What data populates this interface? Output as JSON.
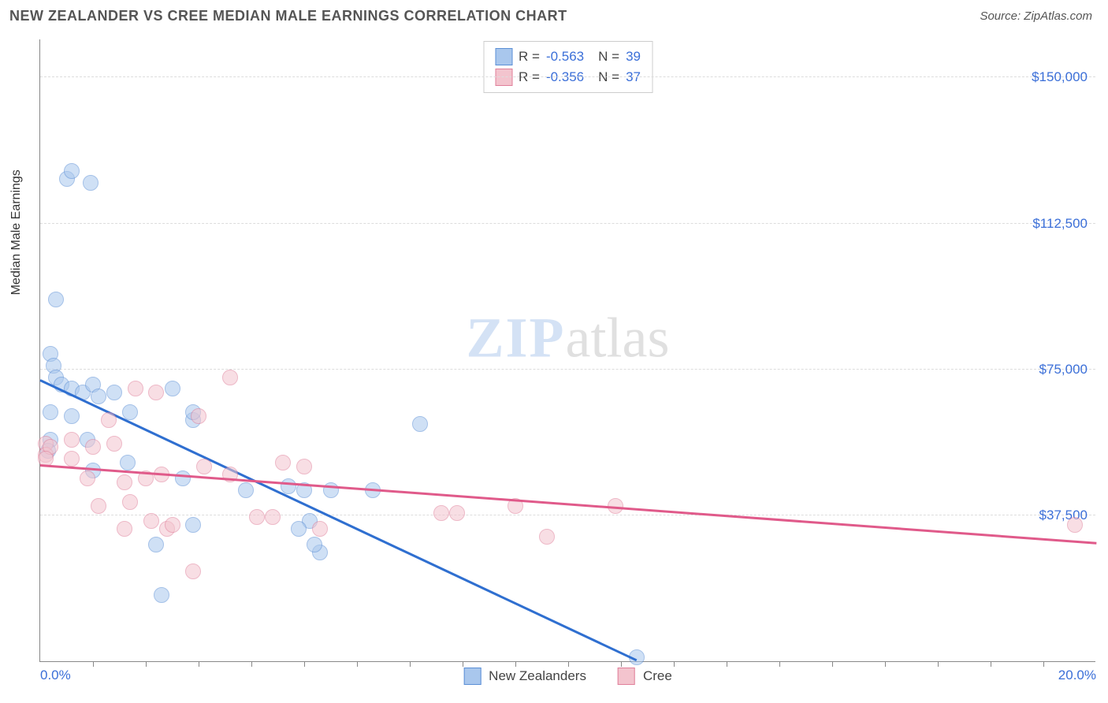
{
  "header": {
    "title": "NEW ZEALANDER VS CREE MEDIAN MALE EARNINGS CORRELATION CHART",
    "source": "Source: ZipAtlas.com"
  },
  "chart": {
    "type": "scatter",
    "ylabel": "Median Male Earnings",
    "xlim": [
      0,
      20
    ],
    "ylim": [
      0,
      160000
    ],
    "x_ticks_minor_step": 1,
    "x_tick_labels": [
      {
        "x": 0,
        "label": "0.0%"
      },
      {
        "x": 20,
        "label": "20.0%"
      }
    ],
    "y_gridlines": [
      37500,
      75000,
      112500,
      150000
    ],
    "y_tick_labels": [
      {
        "y": 37500,
        "label": "$37,500"
      },
      {
        "y": 75000,
        "label": "$75,000"
      },
      {
        "y": 112500,
        "label": "$112,500"
      },
      {
        "y": 150000,
        "label": "$150,000"
      }
    ],
    "background_color": "#ffffff",
    "grid_color": "#dddddd",
    "axis_color": "#888888",
    "marker_radius": 10,
    "marker_opacity": 0.55,
    "series": [
      {
        "name": "New Zealanders",
        "color_fill": "#a9c7ed",
        "color_stroke": "#5b8fd6",
        "trend_color": "#2f6fd0",
        "trend": {
          "x1": 0,
          "y1": 72000,
          "x2": 11.3,
          "y2": 0
        },
        "R": "-0.563",
        "N": "39",
        "points": [
          {
            "x": 0.2,
            "y": 79000
          },
          {
            "x": 0.25,
            "y": 76000
          },
          {
            "x": 0.3,
            "y": 73000
          },
          {
            "x": 0.3,
            "y": 93000
          },
          {
            "x": 0.5,
            "y": 124000
          },
          {
            "x": 0.6,
            "y": 126000
          },
          {
            "x": 0.95,
            "y": 123000
          },
          {
            "x": 0.4,
            "y": 71000
          },
          {
            "x": 0.6,
            "y": 70000
          },
          {
            "x": 0.8,
            "y": 69000
          },
          {
            "x": 1.0,
            "y": 71000
          },
          {
            "x": 0.2,
            "y": 64000
          },
          {
            "x": 0.2,
            "y": 57000
          },
          {
            "x": 0.15,
            "y": 54000
          },
          {
            "x": 0.6,
            "y": 63000
          },
          {
            "x": 1.1,
            "y": 68000
          },
          {
            "x": 1.4,
            "y": 69000
          },
          {
            "x": 1.7,
            "y": 64000
          },
          {
            "x": 2.5,
            "y": 70000
          },
          {
            "x": 2.9,
            "y": 62000
          },
          {
            "x": 2.9,
            "y": 64000
          },
          {
            "x": 1.0,
            "y": 49000
          },
          {
            "x": 1.65,
            "y": 51000
          },
          {
            "x": 2.7,
            "y": 47000
          },
          {
            "x": 2.9,
            "y": 35000
          },
          {
            "x": 2.2,
            "y": 30000
          },
          {
            "x": 2.3,
            "y": 17000
          },
          {
            "x": 3.9,
            "y": 44000
          },
          {
            "x": 4.7,
            "y": 45000
          },
          {
            "x": 5.0,
            "y": 44000
          },
          {
            "x": 5.1,
            "y": 36000
          },
          {
            "x": 5.3,
            "y": 28000
          },
          {
            "x": 5.2,
            "y": 30000
          },
          {
            "x": 5.5,
            "y": 44000
          },
          {
            "x": 6.3,
            "y": 44000
          },
          {
            "x": 7.2,
            "y": 61000
          },
          {
            "x": 4.9,
            "y": 34000
          },
          {
            "x": 11.3,
            "y": 1000
          },
          {
            "x": 0.9,
            "y": 57000
          }
        ]
      },
      {
        "name": "Cree",
        "color_fill": "#f3c4ce",
        "color_stroke": "#e07f9a",
        "trend_color": "#e05a8a",
        "trend": {
          "x1": 0,
          "y1": 50000,
          "x2": 20,
          "y2": 30000
        },
        "R": "-0.356",
        "N": "37",
        "points": [
          {
            "x": 0.1,
            "y": 56000
          },
          {
            "x": 0.1,
            "y": 53000
          },
          {
            "x": 0.2,
            "y": 55000
          },
          {
            "x": 0.1,
            "y": 52000
          },
          {
            "x": 0.6,
            "y": 57000
          },
          {
            "x": 0.6,
            "y": 52000
          },
          {
            "x": 0.9,
            "y": 47000
          },
          {
            "x": 1.0,
            "y": 55000
          },
          {
            "x": 1.3,
            "y": 62000
          },
          {
            "x": 1.4,
            "y": 56000
          },
          {
            "x": 1.6,
            "y": 46000
          },
          {
            "x": 1.6,
            "y": 34000
          },
          {
            "x": 1.7,
            "y": 41000
          },
          {
            "x": 1.8,
            "y": 70000
          },
          {
            "x": 2.0,
            "y": 47000
          },
          {
            "x": 2.1,
            "y": 36000
          },
          {
            "x": 2.2,
            "y": 69000
          },
          {
            "x": 2.3,
            "y": 48000
          },
          {
            "x": 2.4,
            "y": 34000
          },
          {
            "x": 2.5,
            "y": 35000
          },
          {
            "x": 2.9,
            "y": 23000
          },
          {
            "x": 3.0,
            "y": 63000
          },
          {
            "x": 3.1,
            "y": 50000
          },
          {
            "x": 3.6,
            "y": 73000
          },
          {
            "x": 3.6,
            "y": 48000
          },
          {
            "x": 4.1,
            "y": 37000
          },
          {
            "x": 4.4,
            "y": 37000
          },
          {
            "x": 4.6,
            "y": 51000
          },
          {
            "x": 5.0,
            "y": 50000
          },
          {
            "x": 5.3,
            "y": 34000
          },
          {
            "x": 7.6,
            "y": 38000
          },
          {
            "x": 7.9,
            "y": 38000
          },
          {
            "x": 9.0,
            "y": 40000
          },
          {
            "x": 9.6,
            "y": 32000
          },
          {
            "x": 10.9,
            "y": 40000
          },
          {
            "x": 19.6,
            "y": 35000
          },
          {
            "x": 1.1,
            "y": 40000
          }
        ]
      }
    ],
    "watermark": {
      "zip": "ZIP",
      "atlas": "atlas"
    },
    "legend_bottom": [
      "New Zealanders",
      "Cree"
    ]
  }
}
